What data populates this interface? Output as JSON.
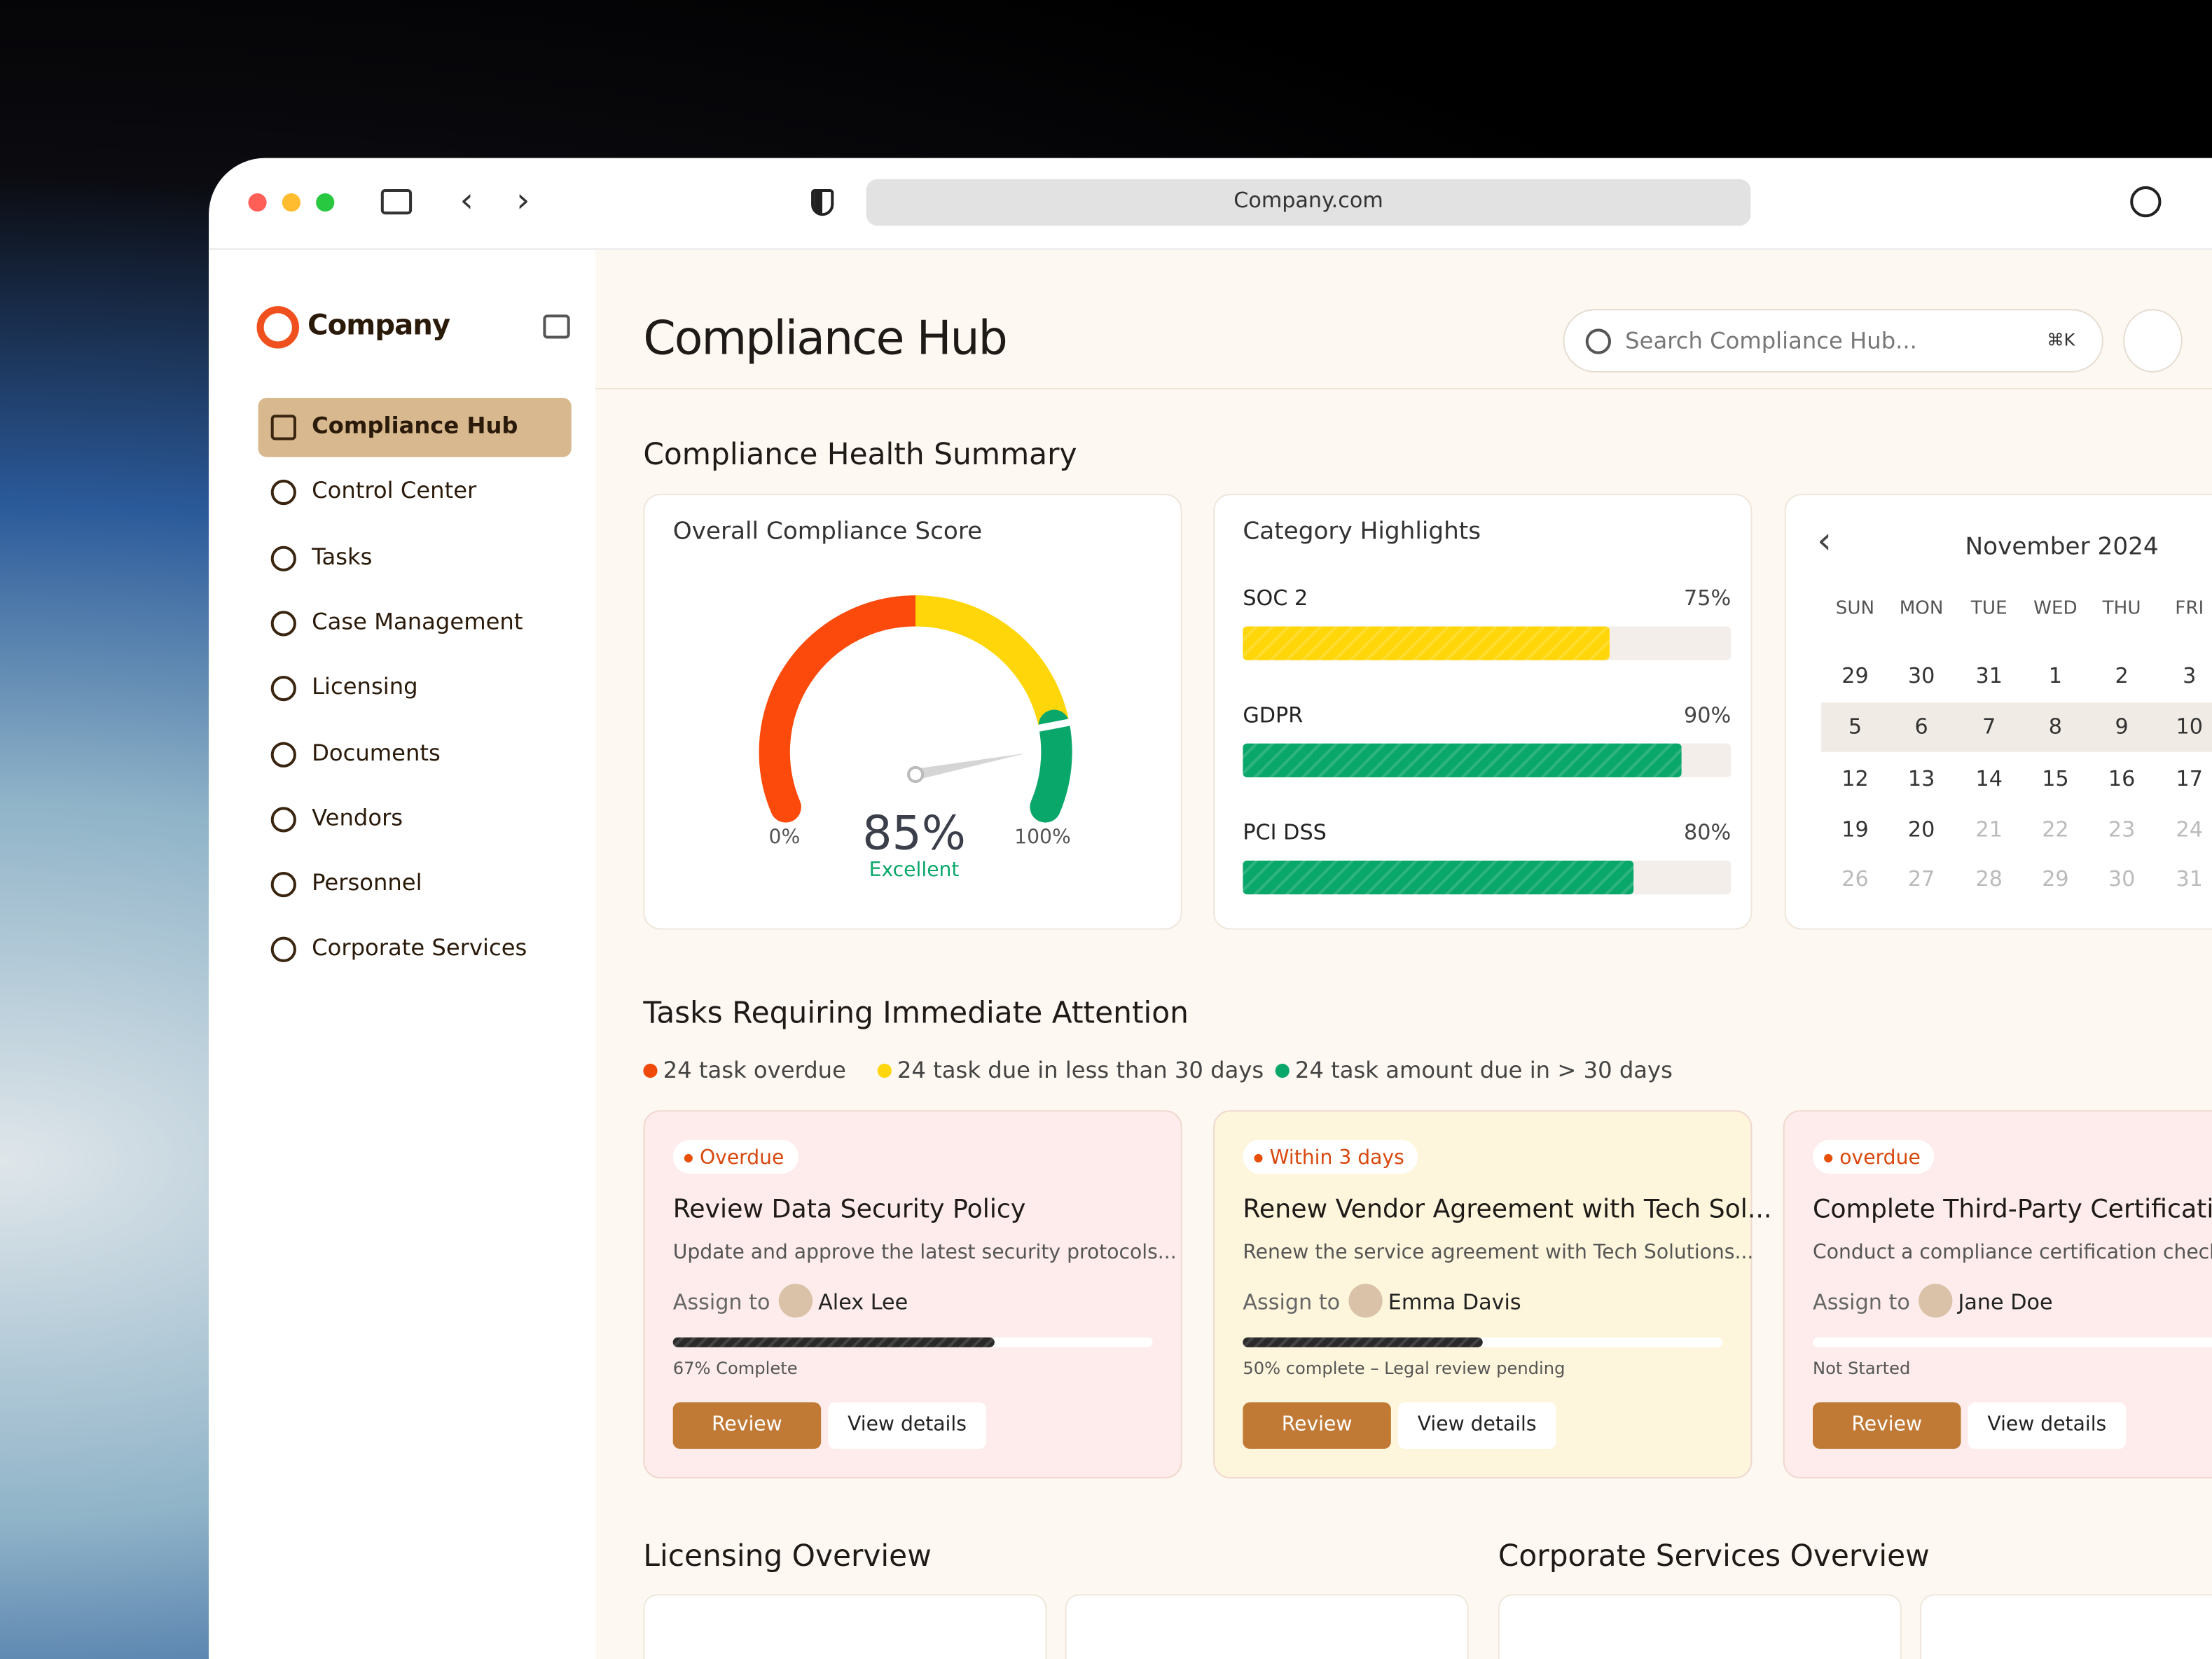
{
  "browser": {
    "url": "Company.com"
  },
  "sidebar": {
    "brand": "Company",
    "items": [
      "Compliance Hub",
      "Control Center",
      "Tasks",
      "Case Management",
      "Licensing",
      "Documents",
      "Vendors",
      "Personnel",
      "Corporate Services"
    ]
  },
  "header": {
    "title": "Compliance Hub",
    "search_placeholder": "Search Compliance Hub...",
    "shortcut": "⌘K"
  },
  "health": {
    "title": "Compliance Health Summary",
    "score": {
      "title": "Overall Compliance Score",
      "value": 85,
      "label": "85%",
      "rating": "Excellent",
      "min": {
        "value": 0,
        "label": "0%"
      },
      "max": {
        "value": 100,
        "label": "100%"
      }
    },
    "categories": {
      "title": "Category Highlights",
      "items": [
        {
          "name": "SOC 2",
          "value": 75,
          "label": "75%",
          "color": "#ffd60a"
        },
        {
          "name": "GDPR",
          "value": 90,
          "label": "90%",
          "color": "#0aa76a"
        },
        {
          "name": "PCI DSS",
          "value": 80,
          "label": "80%",
          "color": "#0aa76a"
        }
      ]
    }
  },
  "calendar": {
    "month": "November 2024",
    "weekdays": [
      "SUN",
      "MON",
      "TUE",
      "WED",
      "THU",
      "FRI"
    ],
    "weeks": [
      [
        "29",
        "30",
        "31",
        "1",
        "2",
        "3"
      ],
      [
        "5",
        "6",
        "7",
        "8",
        "9",
        "10"
      ],
      [
        "12",
        "13",
        "14",
        "15",
        "16",
        "17"
      ],
      [
        "19",
        "20",
        "21",
        "22",
        "23",
        "24"
      ],
      [
        "26",
        "27",
        "28",
        "29",
        "30",
        "31"
      ]
    ]
  },
  "tasks": {
    "title": "Tasks Requiring Immediate Attention",
    "legend": [
      {
        "text": "24 task overdue",
        "color": "#f04a0a"
      },
      {
        "text": "24 task due in less than 30 days",
        "color": "#ffd60a"
      },
      {
        "text": "24 task amount due in > 30 days",
        "color": "#0aa76a"
      }
    ],
    "cards": [
      {
        "status": "Overdue",
        "title": "Review Data Security Policy",
        "description": "Update and approve the latest security protocols...",
        "assign_label": "Assign to",
        "assignee": "Alex Lee",
        "progress": 67,
        "progress_label": "67% Complete",
        "primary": "Review",
        "secondary": "View details",
        "background": "#fdeceb"
      },
      {
        "status": "Within 3 days",
        "title": "Renew Vendor Agreement with Tech Sol...",
        "description": "Renew the service agreement with Tech Solutions...",
        "assign_label": "Assign to",
        "assignee": "Emma Davis",
        "progress": 50,
        "progress_label": "50% complete – Legal review pending",
        "primary": "Review",
        "secondary": "View details",
        "background": "#fef6dc"
      },
      {
        "status": "overdue",
        "title": "Complete Third-Party Certification",
        "description": "Conduct a compliance certification check",
        "assign_label": "Assign to",
        "assignee": "Jane Doe",
        "progress": 0,
        "progress_label": "Not Started",
        "primary": "Review",
        "secondary": "View details",
        "background": "#fdeceb"
      }
    ]
  },
  "sections": [
    "Licensing Overview",
    "Corporate Services Overview"
  ]
}
